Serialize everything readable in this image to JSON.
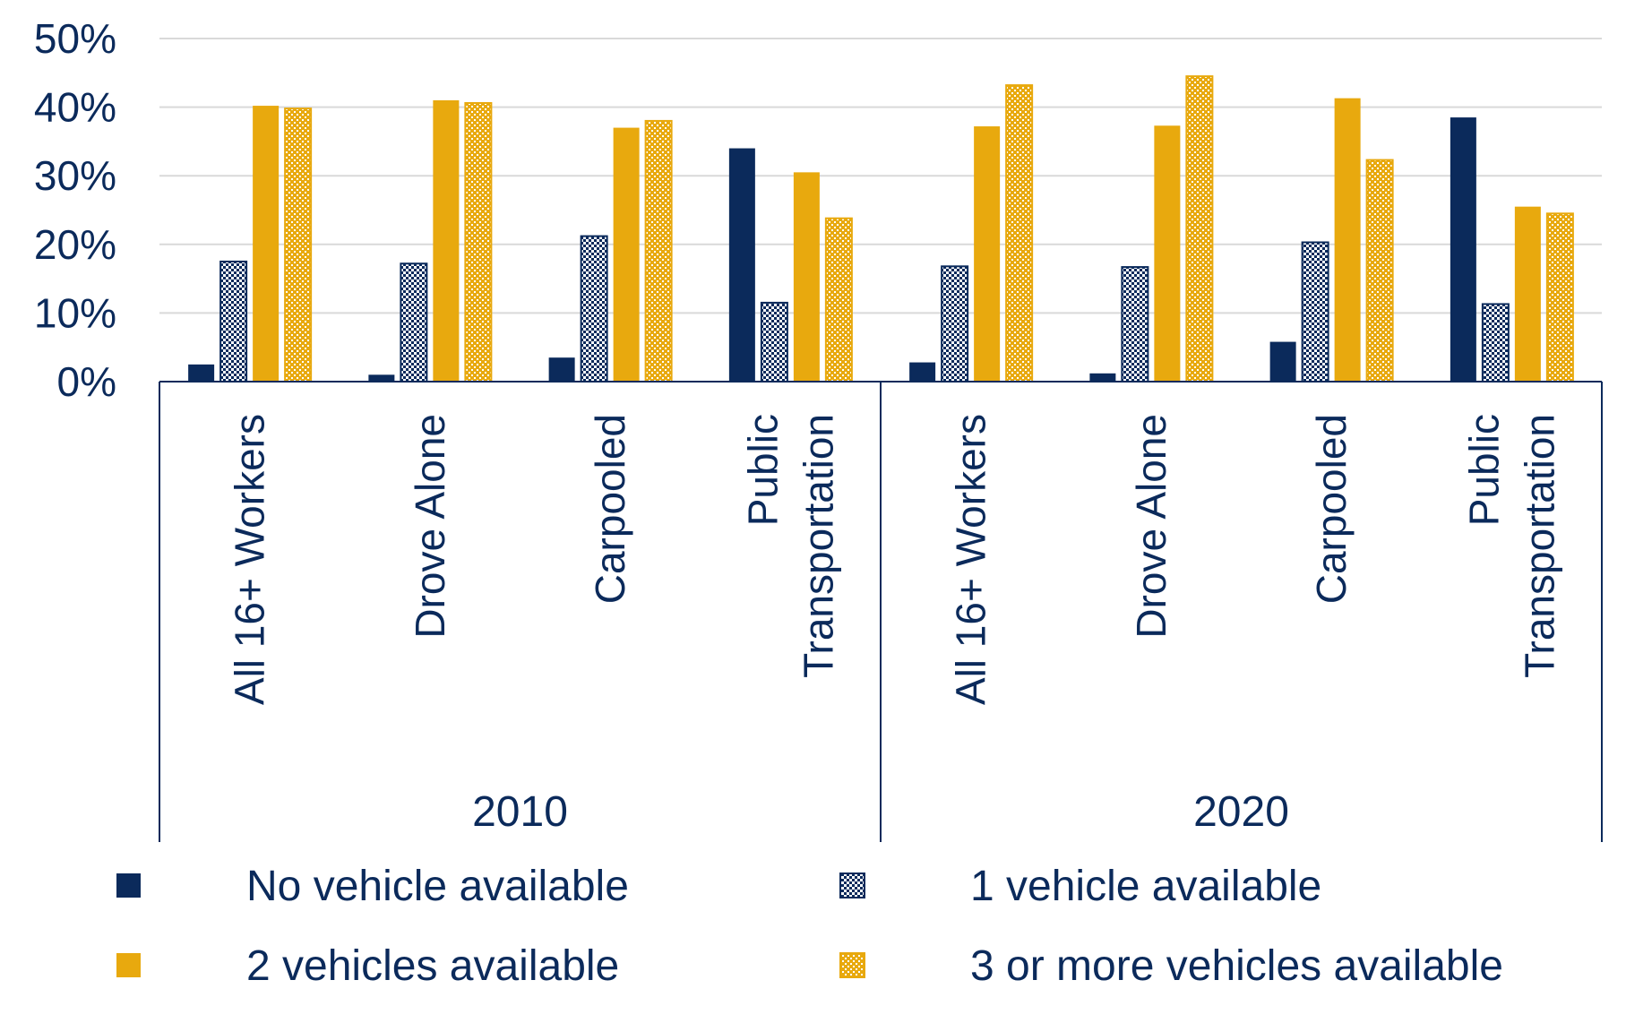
{
  "chart_data": {
    "type": "bar",
    "title": "",
    "xlabel": "",
    "ylabel": "",
    "ylim": [
      0,
      50
    ],
    "yticks": [
      "0%",
      "10%",
      "20%",
      "30%",
      "40%",
      "50%"
    ],
    "grid": true,
    "legend_position": "bottom",
    "groups": [
      "2010",
      "2020"
    ],
    "categories": [
      [
        "All 16+ Workers"
      ],
      [
        "Drove Alone"
      ],
      [
        "Carpooled"
      ],
      [
        "Public",
        "Transportation"
      ]
    ],
    "series": [
      {
        "name": "No vehicle available",
        "color": "#0b2a5b",
        "pattern": "solid",
        "values": [
          [
            2.5,
            1.0,
            3.5,
            34.0
          ],
          [
            2.8,
            1.2,
            5.8,
            38.5
          ]
        ]
      },
      {
        "name": "1 vehicle available",
        "color": "#0b2a5b",
        "pattern": "checker",
        "values": [
          [
            17.5,
            17.2,
            21.2,
            11.5
          ],
          [
            16.8,
            16.7,
            20.3,
            11.3
          ]
        ]
      },
      {
        "name": "2 vehicles available",
        "color": "#e8a90e",
        "pattern": "solid",
        "values": [
          [
            40.2,
            41.0,
            37.0,
            30.5
          ],
          [
            37.2,
            37.3,
            41.3,
            25.5
          ]
        ]
      },
      {
        "name": "3 or more vehicles available",
        "color": "#e8a90e",
        "pattern": "dots",
        "values": [
          [
            39.8,
            40.6,
            38.0,
            23.8
          ],
          [
            43.2,
            44.5,
            32.3,
            24.5
          ]
        ]
      }
    ]
  }
}
